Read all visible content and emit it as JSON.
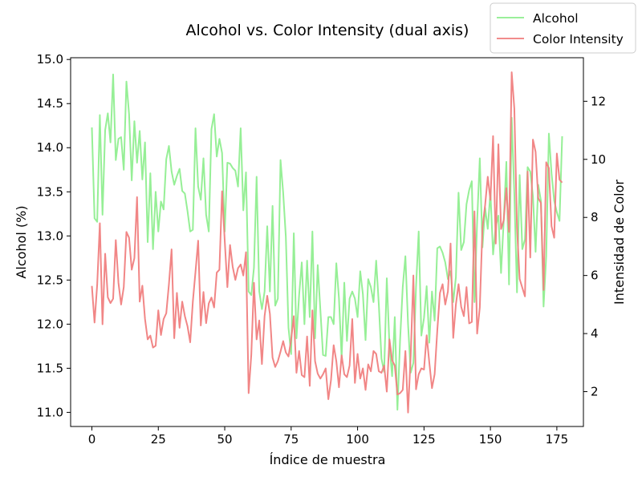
{
  "chart_data": {
    "type": "line",
    "title": "Alcohol vs. Color Intensity (dual axis)",
    "xlabel": "Índice de muestra",
    "ylabel_left": "Alcohol (%)",
    "ylabel_right": "Intensidad de Color",
    "xlim": [
      -8,
      185
    ],
    "ylim_left": [
      10.84,
      15.02
    ],
    "ylim_right": [
      0.8,
      13.5
    ],
    "xticks": [
      0,
      25,
      50,
      75,
      100,
      125,
      150,
      175
    ],
    "yticks_left": [
      11.0,
      11.5,
      12.0,
      12.5,
      13.0,
      13.5,
      14.0,
      14.5,
      15.0
    ],
    "yticks_right": [
      2,
      4,
      6,
      8,
      10,
      12
    ],
    "xtick_labels": [
      "0",
      "25",
      "50",
      "75",
      "100",
      "125",
      "150",
      "175"
    ],
    "ytick_labels_left": [
      "11.0",
      "11.5",
      "12.0",
      "12.5",
      "13.0",
      "13.5",
      "14.0",
      "14.5",
      "15.0"
    ],
    "ytick_labels_right": [
      "2",
      "4",
      "6",
      "8",
      "10",
      "12"
    ],
    "grid": false,
    "legend": {
      "placement": "top-right",
      "entries": [
        "Alcohol",
        "Color Intensity"
      ]
    },
    "colors": {
      "alcohol": "#90ee90",
      "color_intensity": "#f08080"
    },
    "series": [
      {
        "name": "Alcohol",
        "axis": "left",
        "x": [
          0,
          1,
          2,
          3,
          4,
          5,
          6,
          7,
          8,
          9,
          10,
          11,
          12,
          13,
          14,
          15,
          16,
          17,
          18,
          19,
          20,
          21,
          22,
          23,
          24,
          25,
          26,
          27,
          28,
          29,
          30,
          31,
          32,
          33,
          34,
          35,
          36,
          37,
          38,
          39,
          40,
          41,
          42,
          43,
          44,
          45,
          46,
          47,
          48,
          49,
          50,
          51,
          52,
          53,
          54,
          55,
          56,
          57,
          58,
          59,
          60,
          61,
          62,
          63,
          64,
          65,
          66,
          67,
          68,
          69,
          70,
          71,
          72,
          73,
          74,
          75,
          76,
          77,
          78,
          79,
          80,
          81,
          82,
          83,
          84,
          85,
          86,
          87,
          88,
          89,
          90,
          91,
          92,
          93,
          94,
          95,
          96,
          97,
          98,
          99,
          100,
          101,
          102,
          103,
          104,
          105,
          106,
          107,
          108,
          109,
          110,
          111,
          112,
          113,
          114,
          115,
          116,
          117,
          118,
          119,
          120,
          121,
          122,
          123,
          124,
          125,
          126,
          127,
          128,
          129,
          130,
          131,
          132,
          133,
          134,
          135,
          136,
          137,
          138,
          139,
          140,
          141,
          142,
          143,
          144,
          145,
          146,
          147,
          148,
          149,
          150,
          151,
          152,
          153,
          154,
          155,
          156,
          157,
          158,
          159,
          160,
          161,
          162,
          163,
          164,
          165,
          166,
          167,
          168,
          169,
          170,
          171,
          172,
          173,
          174,
          175,
          176,
          177
        ],
        "values": [
          14.23,
          13.2,
          13.16,
          14.37,
          13.24,
          14.2,
          14.39,
          14.06,
          14.83,
          13.86,
          14.1,
          14.12,
          13.75,
          14.75,
          14.38,
          13.63,
          14.3,
          13.83,
          14.19,
          13.64,
          14.06,
          12.93,
          13.71,
          12.85,
          13.5,
          13.05,
          13.39,
          13.3,
          13.87,
          14.02,
          13.73,
          13.58,
          13.68,
          13.76,
          13.51,
          13.48,
          13.28,
          13.05,
          13.07,
          14.22,
          13.56,
          13.41,
          13.88,
          13.24,
          13.05,
          14.21,
          14.38,
          13.9,
          14.1,
          13.94,
          13.05,
          13.83,
          13.82,
          13.77,
          13.74,
          13.56,
          14.22,
          13.29,
          13.72,
          12.37,
          12.33,
          12.64,
          13.67,
          12.37,
          12.17,
          12.37,
          13.11,
          12.37,
          13.34,
          12.21,
          12.29,
          13.86,
          13.49,
          12.99,
          11.96,
          11.66,
          13.03,
          11.84,
          12.33,
          12.7,
          12.0,
          12.72,
          12.08,
          13.05,
          11.84,
          12.67,
          12.16,
          11.65,
          11.64,
          12.08,
          12.08,
          12.0,
          12.69,
          12.29,
          11.62,
          12.47,
          11.81,
          12.29,
          12.37,
          12.29,
          12.08,
          12.6,
          12.34,
          11.82,
          12.51,
          12.42,
          12.25,
          12.72,
          12.22,
          11.61,
          11.46,
          12.52,
          11.76,
          11.41,
          12.08,
          11.03,
          11.82,
          12.42,
          12.77,
          12.0,
          11.45,
          11.56,
          12.42,
          13.05,
          11.87,
          12.07,
          12.43,
          11.79,
          12.37,
          12.04,
          12.86,
          12.88,
          12.81,
          12.7,
          12.51,
          12.6,
          12.25,
          12.53,
          13.49,
          12.84,
          12.93,
          13.36,
          13.52,
          13.62,
          12.25,
          13.16,
          13.88,
          12.87,
          13.32,
          13.08,
          13.5,
          12.79,
          13.11,
          13.23,
          12.58,
          13.17,
          13.84,
          12.45,
          14.34,
          13.48,
          12.36,
          13.69,
          12.85,
          12.96,
          13.78,
          13.73,
          13.45,
          12.82,
          13.58,
          13.4,
          12.2,
          12.77,
          14.16,
          13.71,
          13.4,
          13.27,
          13.17,
          14.13
        ]
      },
      {
        "name": "Color Intensity",
        "axis": "right",
        "x": [
          0,
          1,
          2,
          3,
          4,
          5,
          6,
          7,
          8,
          9,
          10,
          11,
          12,
          13,
          14,
          15,
          16,
          17,
          18,
          19,
          20,
          21,
          22,
          23,
          24,
          25,
          26,
          27,
          28,
          29,
          30,
          31,
          32,
          33,
          34,
          35,
          36,
          37,
          38,
          39,
          40,
          41,
          42,
          43,
          44,
          45,
          46,
          47,
          48,
          49,
          50,
          51,
          52,
          53,
          54,
          55,
          56,
          57,
          58,
          59,
          60,
          61,
          62,
          63,
          64,
          65,
          66,
          67,
          68,
          69,
          70,
          71,
          72,
          73,
          74,
          75,
          76,
          77,
          78,
          79,
          80,
          81,
          82,
          83,
          84,
          85,
          86,
          87,
          88,
          89,
          90,
          91,
          92,
          93,
          94,
          95,
          96,
          97,
          98,
          99,
          100,
          101,
          102,
          103,
          104,
          105,
          106,
          107,
          108,
          109,
          110,
          111,
          112,
          113,
          114,
          115,
          116,
          117,
          118,
          119,
          120,
          121,
          122,
          123,
          124,
          125,
          126,
          127,
          128,
          129,
          130,
          131,
          132,
          133,
          134,
          135,
          136,
          137,
          138,
          139,
          140,
          141,
          142,
          143,
          144,
          145,
          146,
          147,
          148,
          149,
          150,
          151,
          152,
          153,
          154,
          155,
          156,
          157,
          158,
          159,
          160,
          161,
          162,
          163,
          164,
          165,
          166,
          167,
          168,
          169,
          170,
          171,
          172,
          173,
          174,
          175,
          176,
          177
        ],
        "values": [
          5.64,
          4.38,
          5.68,
          7.8,
          4.32,
          6.75,
          5.25,
          5.05,
          5.2,
          7.22,
          5.75,
          5.0,
          5.6,
          7.5,
          7.3,
          6.2,
          6.6,
          8.7,
          5.1,
          5.65,
          4.5,
          3.8,
          3.93,
          3.52,
          3.58,
          4.8,
          3.95,
          4.5,
          4.7,
          5.7,
          6.9,
          3.84,
          5.4,
          4.2,
          5.1,
          4.6,
          4.25,
          3.7,
          5.1,
          6.13,
          7.2,
          4.28,
          5.43,
          4.36,
          5.04,
          5.24,
          4.9,
          6.1,
          6.2,
          8.9,
          7.2,
          5.6,
          7.05,
          6.3,
          5.85,
          6.25,
          6.38,
          6.0,
          6.8,
          1.95,
          3.27,
          5.75,
          3.8,
          4.45,
          2.95,
          4.6,
          5.3,
          4.68,
          3.17,
          2.85,
          3.05,
          3.38,
          3.74,
          3.35,
          3.21,
          3.8,
          4.6,
          2.65,
          3.4,
          2.57,
          2.5,
          3.9,
          2.2,
          4.8,
          3.05,
          2.62,
          2.45,
          2.6,
          2.8,
          1.74,
          2.4,
          3.6,
          3.05,
          2.15,
          3.25,
          2.6,
          2.5,
          2.9,
          4.5,
          2.3,
          3.3,
          2.45,
          2.8,
          2.06,
          2.94,
          2.7,
          3.4,
          3.3,
          2.7,
          2.65,
          2.9,
          2.0,
          3.8,
          3.08,
          2.9,
          1.9,
          1.95,
          2.06,
          3.4,
          1.28,
          3.25,
          6.0,
          2.08,
          2.6,
          2.8,
          2.76,
          3.94,
          3.0,
          2.12,
          2.6,
          4.1,
          5.4,
          5.7,
          5.0,
          5.45,
          7.1,
          3.85,
          5.0,
          5.7,
          4.92,
          4.6,
          5.6,
          4.35,
          4.4,
          8.21,
          4.0,
          4.9,
          7.65,
          8.42,
          9.4,
          8.6,
          10.8,
          7.1,
          10.52,
          7.6,
          7.9,
          9.01,
          7.5,
          13.0,
          11.75,
          7.65,
          5.88,
          5.58,
          5.28,
          9.58,
          6.62,
          10.68,
          10.26,
          8.66,
          8.5,
          5.5,
          9.899999,
          9.7,
          7.7,
          7.3,
          10.2,
          9.3,
          9.2
        ]
      }
    ]
  }
}
